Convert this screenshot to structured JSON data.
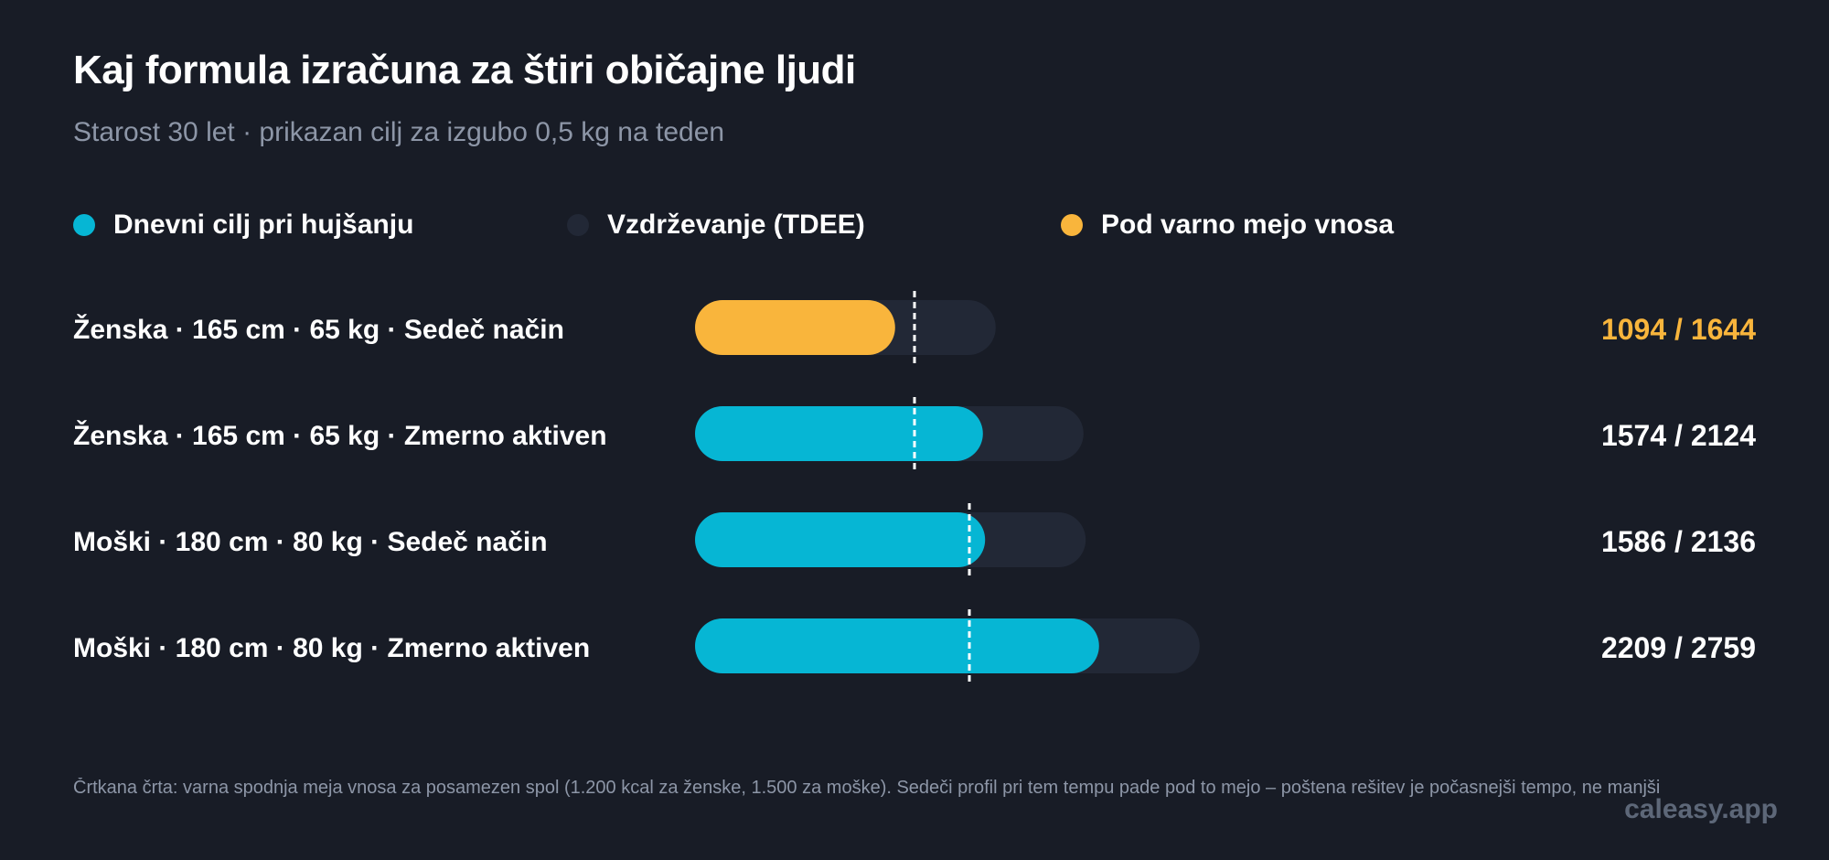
{
  "chart_data": {
    "type": "bar",
    "title": "Kaj formula izračuna za štiri običajne ljudi",
    "subtitle": "Starost 30 let · prikazan cilj za izgubo 0,5 kg na teden",
    "legend": [
      {
        "label": "Dnevni cilj pri hujšanju",
        "color": "#06b6d4"
      },
      {
        "label": "Vzdrževanje (TDEE)",
        "color": "#222836"
      },
      {
        "label": "Pod varno mejo vnosa",
        "color": "#f9b53c"
      }
    ],
    "categories": [
      "Ženska · 165 cm · 65 kg · Sedeč način",
      "Ženska · 165 cm · 65 kg · Zmerno aktiven",
      "Moški · 180 cm · 80 kg · Sedeč način",
      "Moški · 180 cm · 80 kg · Zmerno aktiven"
    ],
    "series": [
      {
        "name": "Dnevni cilj pri hujšanju",
        "values": [
          1094,
          1574,
          1586,
          2209
        ]
      },
      {
        "name": "Vzdrževanje (TDEE)",
        "values": [
          1644,
          2124,
          2136,
          2759
        ]
      }
    ],
    "safe_min": [
      1200,
      1200,
      1500,
      1500
    ],
    "below_safe": [
      true,
      false,
      false,
      false
    ],
    "value_labels": [
      "1094 / 1644",
      "1574 / 2124",
      "1586 / 2136",
      "2209 / 2759"
    ],
    "xlim": [
      0,
      3500
    ],
    "grid": false,
    "legend_position": "top-left",
    "colors": {
      "target": "#06b6d4",
      "maintenance": "#222836",
      "below_safe": "#f9b53c",
      "safe_line": "#ffffff",
      "text": "#ffffff",
      "muted": "#8d96a7"
    }
  },
  "footnote": "Črtkana črta: varna spodnja meja vnosa za posamezen spol (1.200 kcal za ženske, 1.500 za moške). Sedeči profil pri tem tempu pade pod to mejo – poštena rešitev je počasnejši tempo, ne manjši",
  "watermark": "caleasy.app"
}
